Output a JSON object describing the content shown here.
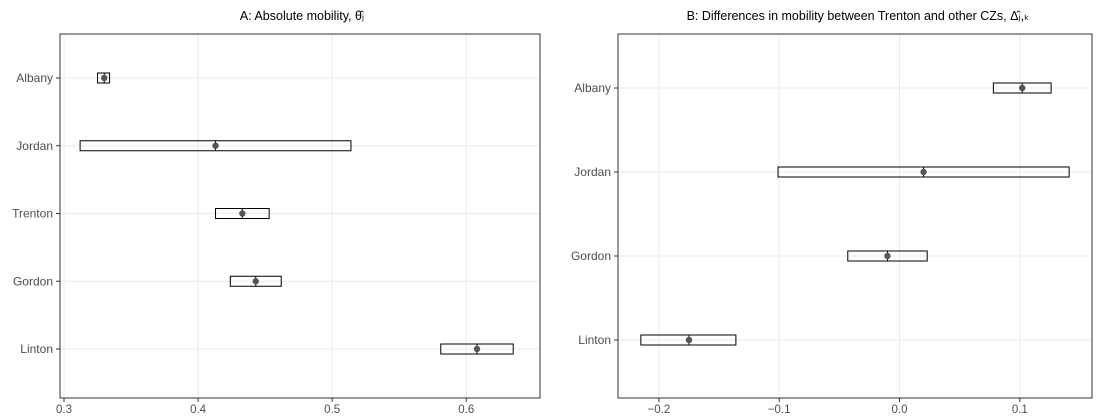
{
  "chart_data": [
    {
      "type": "interval",
      "title": "A: Absolute mobility, θ̂ⱼ",
      "categories": [
        "Albany",
        "Jordan",
        "Trenton",
        "Gordon",
        "Linton"
      ],
      "estimate": [
        0.33,
        0.413,
        0.433,
        0.443,
        0.608
      ],
      "lower": [
        0.325,
        0.312,
        0.413,
        0.424,
        0.581
      ],
      "upper": [
        0.334,
        0.514,
        0.453,
        0.462,
        0.635
      ],
      "xlim": [
        0.297,
        0.655
      ],
      "xticks": [
        "0.3",
        "0.4",
        "0.5",
        "0.6"
      ],
      "xtick_values": [
        0.3,
        0.4,
        0.5,
        0.6
      ],
      "grid": true
    },
    {
      "type": "interval",
      "title": "B: Differences in mobility between Trenton and other CZs, Δ̂ⱼ,ₖ",
      "categories": [
        "Albany",
        "Jordan",
        "Gordon",
        "Linton"
      ],
      "estimate": [
        0.102,
        0.02,
        -0.01,
        -0.175
      ],
      "lower": [
        0.078,
        -0.101,
        -0.043,
        -0.215
      ],
      "upper": [
        0.126,
        0.141,
        0.023,
        -0.136
      ],
      "xlim": [
        -0.234,
        0.16
      ],
      "xticks": [
        "−0.2",
        "−0.1",
        "0.0",
        "0.1"
      ],
      "xtick_values": [
        -0.2,
        -0.1,
        0.0,
        0.1
      ],
      "grid": true
    }
  ]
}
